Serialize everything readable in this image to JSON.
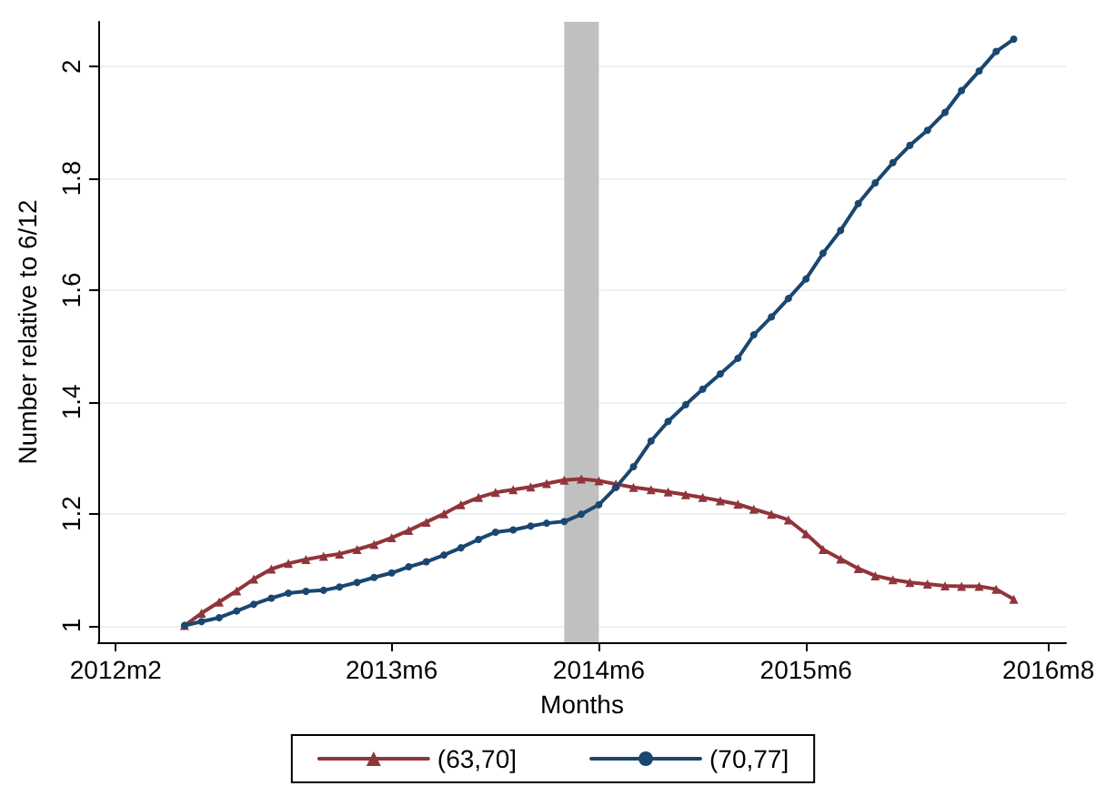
{
  "chart_data": {
    "type": "line",
    "xlabel": "Months",
    "ylabel": "Number relative to 6/12",
    "x": [
      "2012-06",
      "2012-07",
      "2012-08",
      "2012-09",
      "2012-10",
      "2012-11",
      "2012-12",
      "2013-01",
      "2013-02",
      "2013-03",
      "2013-04",
      "2013-05",
      "2013-06",
      "2013-07",
      "2013-08",
      "2013-09",
      "2013-10",
      "2013-11",
      "2013-12",
      "2014-01",
      "2014-02",
      "2014-03",
      "2014-04",
      "2014-05",
      "2014-06",
      "2014-07",
      "2014-08",
      "2014-09",
      "2014-10",
      "2014-11",
      "2014-12",
      "2015-01",
      "2015-02",
      "2015-03",
      "2015-04",
      "2015-05",
      "2015-06",
      "2015-07",
      "2015-08",
      "2015-09",
      "2015-10",
      "2015-11",
      "2015-12",
      "2016-01",
      "2016-02",
      "2016-03",
      "2016-04",
      "2016-05",
      "2016-06"
    ],
    "series": [
      {
        "name": "(63,70]",
        "color": "#90353b",
        "marker": "triangle",
        "values": [
          1.0,
          1.022,
          1.042,
          1.062,
          1.083,
          1.101,
          1.111,
          1.118,
          1.124,
          1.128,
          1.136,
          1.145,
          1.157,
          1.17,
          1.185,
          1.2,
          1.216,
          1.229,
          1.238,
          1.243,
          1.248,
          1.254,
          1.26,
          1.262,
          1.259,
          1.253,
          1.247,
          1.243,
          1.239,
          1.234,
          1.229,
          1.223,
          1.217,
          1.208,
          1.199,
          1.189,
          1.164,
          1.136,
          1.119,
          1.102,
          1.089,
          1.082,
          1.077,
          1.074,
          1.071,
          1.07,
          1.07,
          1.065,
          1.047
        ]
      },
      {
        "name": "(70,77]",
        "color": "#1a476f",
        "marker": "circle",
        "values": [
          1.0,
          1.007,
          1.014,
          1.026,
          1.038,
          1.049,
          1.058,
          1.061,
          1.063,
          1.069,
          1.077,
          1.086,
          1.094,
          1.105,
          1.114,
          1.126,
          1.139,
          1.154,
          1.167,
          1.171,
          1.178,
          1.183,
          1.186,
          1.199,
          1.216,
          1.247,
          1.284,
          1.33,
          1.365,
          1.395,
          1.423,
          1.45,
          1.478,
          1.52,
          1.552,
          1.585,
          1.62,
          1.666,
          1.707,
          1.755,
          1.792,
          1.828,
          1.859,
          1.886,
          1.918,
          1.957,
          1.992,
          2.027,
          2.049
        ]
      }
    ],
    "xlim": [
      "2012-01",
      "2016-09"
    ],
    "xticks": [
      {
        "value": "2012-02",
        "label": "2012m2"
      },
      {
        "value": "2013-06",
        "label": "2013m6"
      },
      {
        "value": "2014-06",
        "label": "2014m6"
      },
      {
        "value": "2015-06",
        "label": "2015m6"
      },
      {
        "value": "2016-08",
        "label": "2016m8"
      }
    ],
    "ylim": [
      0.97,
      2.08
    ],
    "yticks": [
      1,
      1.2,
      1.4,
      1.6,
      1.8,
      2
    ],
    "bands": [
      {
        "axis": "x",
        "from": "2014-04",
        "to": "2014-06",
        "color": "#c0c0c0"
      }
    ],
    "grid": "y",
    "legend": "bottom",
    "line_style": "solid"
  }
}
